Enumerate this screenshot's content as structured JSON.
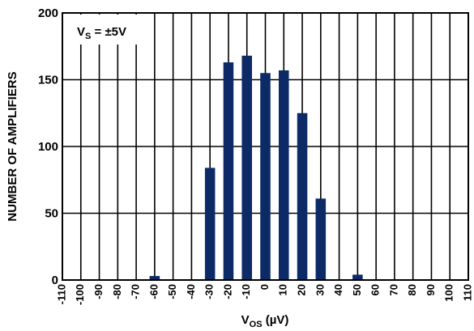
{
  "chart_data": {
    "type": "bar",
    "annotation": {
      "main": "V",
      "sub": "S",
      "rest": " = ±5V"
    },
    "xlabel": {
      "main": "V",
      "sub": "OS",
      "rest": " (µV)"
    },
    "ylabel": "NUMBER OF AMPLIFIERS",
    "x_ticks": [
      "-110",
      "-100",
      "-90",
      "-80",
      "-70",
      "-60",
      "-50",
      "-40",
      "-30",
      "-20",
      "-10",
      "0",
      "10",
      "20",
      "30",
      "40",
      "50",
      "60",
      "70",
      "80",
      "90",
      "100",
      "110"
    ],
    "y_ticks": [
      "0",
      "50",
      "100",
      "150",
      "200"
    ],
    "ylim": [
      0,
      200
    ],
    "xlim": [
      -110,
      110
    ],
    "grid": true,
    "bar_color": "#0b2a66",
    "categories": [
      "-60",
      "-30",
      "-20",
      "-10",
      "0",
      "10",
      "20",
      "30",
      "50"
    ],
    "values": [
      3,
      84,
      163,
      168,
      155,
      157,
      125,
      61,
      4
    ]
  }
}
